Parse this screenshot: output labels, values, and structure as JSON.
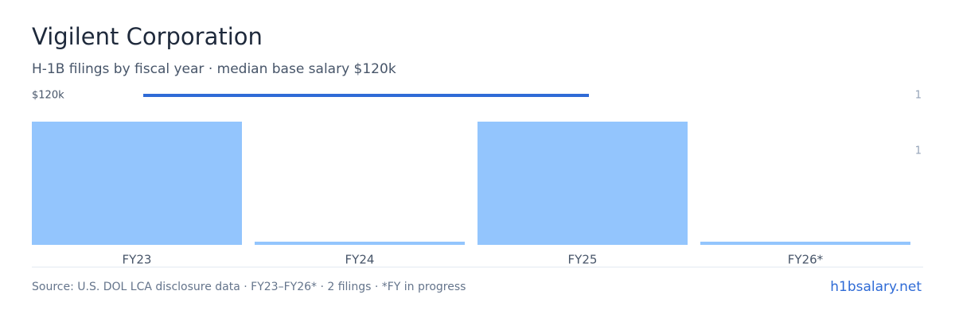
{
  "chart_data": {
    "type": "bar",
    "title": "Vigilent Corporation",
    "subtitle": "H-1B filings by fiscal year · median base salary $120k",
    "categories": [
      "FY23",
      "FY24",
      "FY25",
      "FY26*"
    ],
    "values": [
      1,
      0,
      1,
      0
    ],
    "color": "#93c5fd",
    "ylim": [
      0,
      1
    ],
    "line": {
      "values": [
        120000,
        120000,
        120000,
        null
      ],
      "color": "#2f6bd6"
    },
    "y2lim": [
      0,
      120000
    ],
    "y2ticks": [
      {
        "value": 120000,
        "label": "$120k"
      }
    ],
    "side_labels": [
      "1",
      "1"
    ],
    "source": "Source: U.S. DOL LCA disclosure data · FY23–FY26* · 2 filings · *FY in progress",
    "brand": "h1bsalary.net"
  }
}
